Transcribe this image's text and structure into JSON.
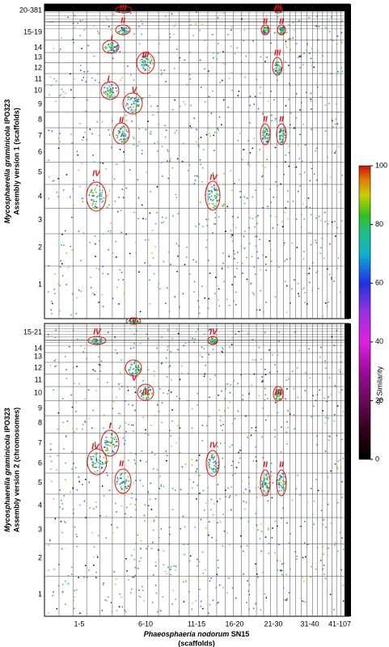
{
  "panels": [
    {
      "y_species": "Mycosphaerella graminicola",
      "y_strain": "IPO323",
      "y_subtitle": "Assembly version 1  (scaffolds)",
      "y_ticks": [
        "20-381",
        "15-19",
        "14",
        "13",
        "12",
        "11",
        "10",
        "9",
        "8",
        "7",
        "6",
        "5",
        "4",
        "3",
        "2",
        "1"
      ],
      "x_ticks": [
        "1-5",
        "6-10",
        "11-15",
        "16-20",
        "21-30",
        "31-40",
        "41-107"
      ],
      "annotations": [
        "III",
        "II",
        "I",
        "III",
        "I",
        "V",
        "II",
        "IV",
        "IV",
        "II",
        "II",
        "III",
        "III",
        "II",
        "II"
      ]
    },
    {
      "y_species": "Mycosphaerella graminicola",
      "y_strain": "IPO323",
      "y_subtitle": "Assembly version 2  (chromosomes)",
      "y_ticks": [
        "15-21",
        "14",
        "13",
        "12",
        "11",
        "10",
        "9",
        "8",
        "7",
        "6",
        "5",
        "4",
        "3",
        "2",
        "1"
      ],
      "x_ticks": [
        "1-5",
        "6-10",
        "11-15",
        "16-20",
        "21-30",
        "31-40",
        "41-107"
      ],
      "annotations": [
        "V",
        "IV",
        "IV",
        "V",
        "III",
        "I",
        "IV",
        "II",
        "IV",
        "II",
        "II",
        "III"
      ]
    }
  ],
  "x_species": "Phaeosphaeria nodorum",
  "x_strain": "SN15",
  "x_subtitle": "(scaffolds)",
  "colorbar": {
    "label": "% Similarity",
    "lim": [
      0,
      100
    ],
    "ticks": [
      0,
      20,
      40,
      60,
      80,
      100
    ]
  }
}
